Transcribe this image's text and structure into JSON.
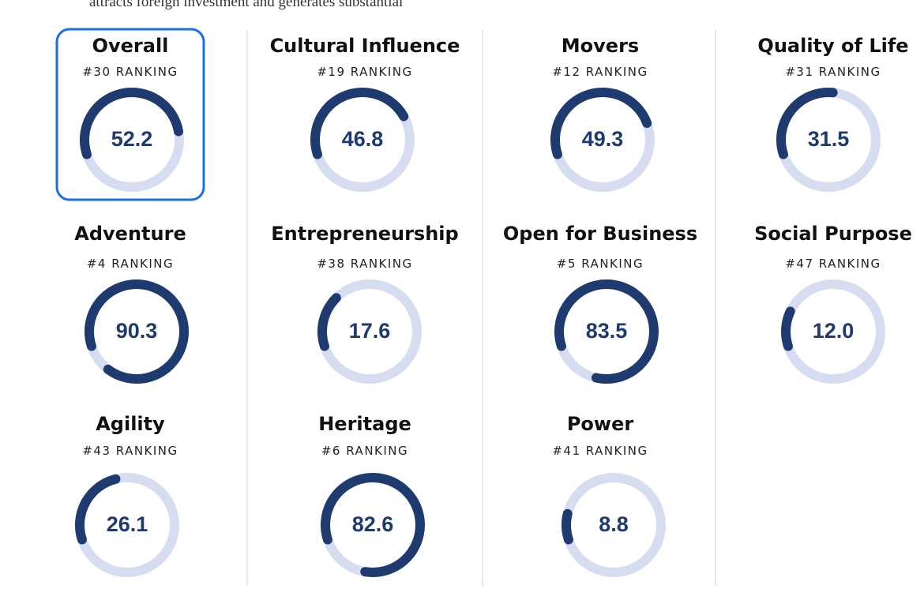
{
  "intro": "attracts foreign investment and generates substantial",
  "columns": [
    [
      {
        "title": "Overall",
        "ranking": "#30 RANKING",
        "value": 52.2
      },
      {
        "title": "Adventure",
        "ranking": "#4 RANKING",
        "value": 90.3
      },
      {
        "title": "Agility",
        "ranking": "#43 RANKING",
        "value": 26.1
      }
    ],
    [
      {
        "title": "Cultural Influence",
        "ranking": "#19 RANKING",
        "value": 46.8
      },
      {
        "title": "Entrepreneurship",
        "ranking": "#38 RANKING",
        "value": 17.6
      },
      {
        "title": "Heritage",
        "ranking": "#6 RANKING",
        "value": 82.6
      }
    ],
    [
      {
        "title": "Movers",
        "ranking": "#12 RANKING",
        "value": 49.3
      },
      {
        "title": "Open for Business",
        "ranking": "#5 RANKING",
        "value": 83.5
      },
      {
        "title": "Power",
        "ranking": "#41 RANKING",
        "value": 8.8
      }
    ],
    [
      {
        "title": "Quality of Life",
        "ranking": "#31 RANKING",
        "value": 31.5
      },
      {
        "title": "Social Purpose",
        "ranking": "#47 RANKING",
        "value": 12,
        "value_label": "12.0"
      }
    ]
  ]
}
